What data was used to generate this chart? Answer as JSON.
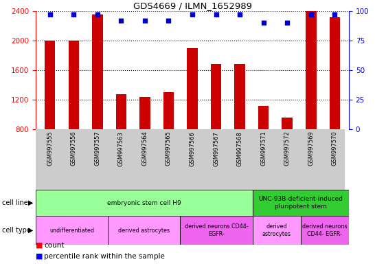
{
  "title": "GDS4669 / ILMN_1652989",
  "samples": [
    "GSM997555",
    "GSM997556",
    "GSM997557",
    "GSM997563",
    "GSM997564",
    "GSM997565",
    "GSM997566",
    "GSM997567",
    "GSM997568",
    "GSM997571",
    "GSM997572",
    "GSM997569",
    "GSM997570"
  ],
  "counts": [
    2000,
    2000,
    2350,
    1270,
    1240,
    1300,
    1900,
    1680,
    1680,
    1120,
    960,
    2400,
    2320
  ],
  "percentiles": [
    97,
    97,
    97,
    92,
    92,
    92,
    97,
    97,
    97,
    90,
    90,
    97,
    97
  ],
  "ylim_left": [
    800,
    2400
  ],
  "ylim_right": [
    0,
    100
  ],
  "yticks_left": [
    800,
    1200,
    1600,
    2000,
    2400
  ],
  "yticks_right": [
    0,
    25,
    50,
    75,
    100
  ],
  "bar_color": "#cc0000",
  "dot_color": "#0000cc",
  "cell_line_groups": [
    {
      "label": "embryonic stem cell H9",
      "start": 0,
      "end": 9,
      "color": "#99ff99"
    },
    {
      "label": "UNC-93B-deficient-induced\npluripotent stem",
      "start": 9,
      "end": 13,
      "color": "#33cc33"
    }
  ],
  "cell_type_groups": [
    {
      "label": "undifferentiated",
      "start": 0,
      "end": 3,
      "color": "#ff99ff"
    },
    {
      "label": "derived astrocytes",
      "start": 3,
      "end": 6,
      "color": "#ff99ff"
    },
    {
      "label": "derived neurons CD44-\nEGFR-",
      "start": 6,
      "end": 9,
      "color": "#ee66ee"
    },
    {
      "label": "derived\nastrocytes",
      "start": 9,
      "end": 11,
      "color": "#ff99ff"
    },
    {
      "label": "derived neurons\nCD44- EGFR-",
      "start": 11,
      "end": 13,
      "color": "#ee66ee"
    }
  ]
}
